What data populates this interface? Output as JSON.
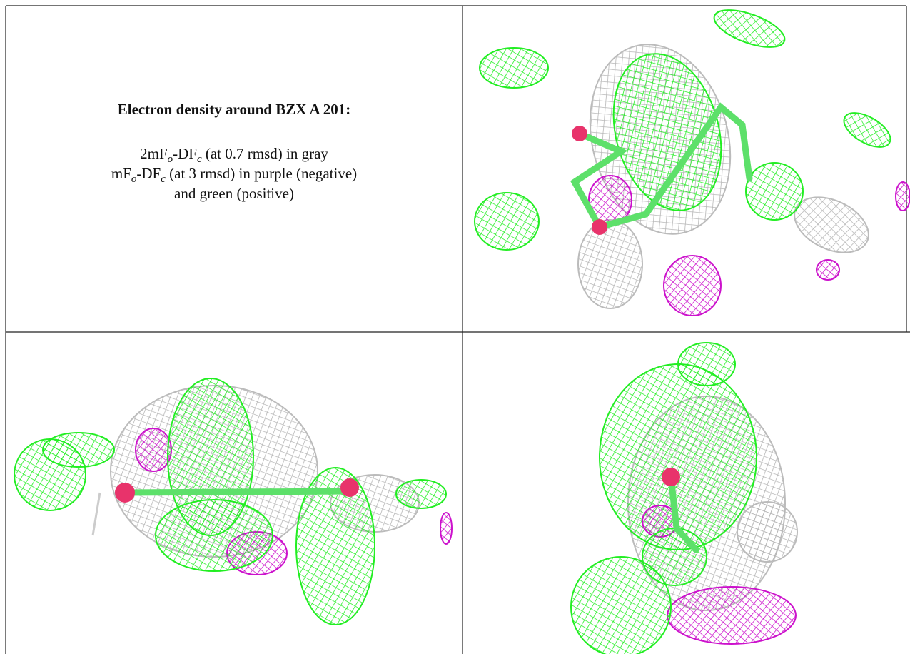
{
  "caption": {
    "title": "Electron density around BZX A 201:",
    "lines": [
      [
        "2mF",
        "o",
        "-DF",
        "c",
        " (at 0.7 rmsd) in gray"
      ],
      [
        "mF",
        "o",
        "-DF",
        "c",
        " (at 3 rmsd) in purple (negative)"
      ],
      [
        "and green (positive)"
      ]
    ]
  }
}
